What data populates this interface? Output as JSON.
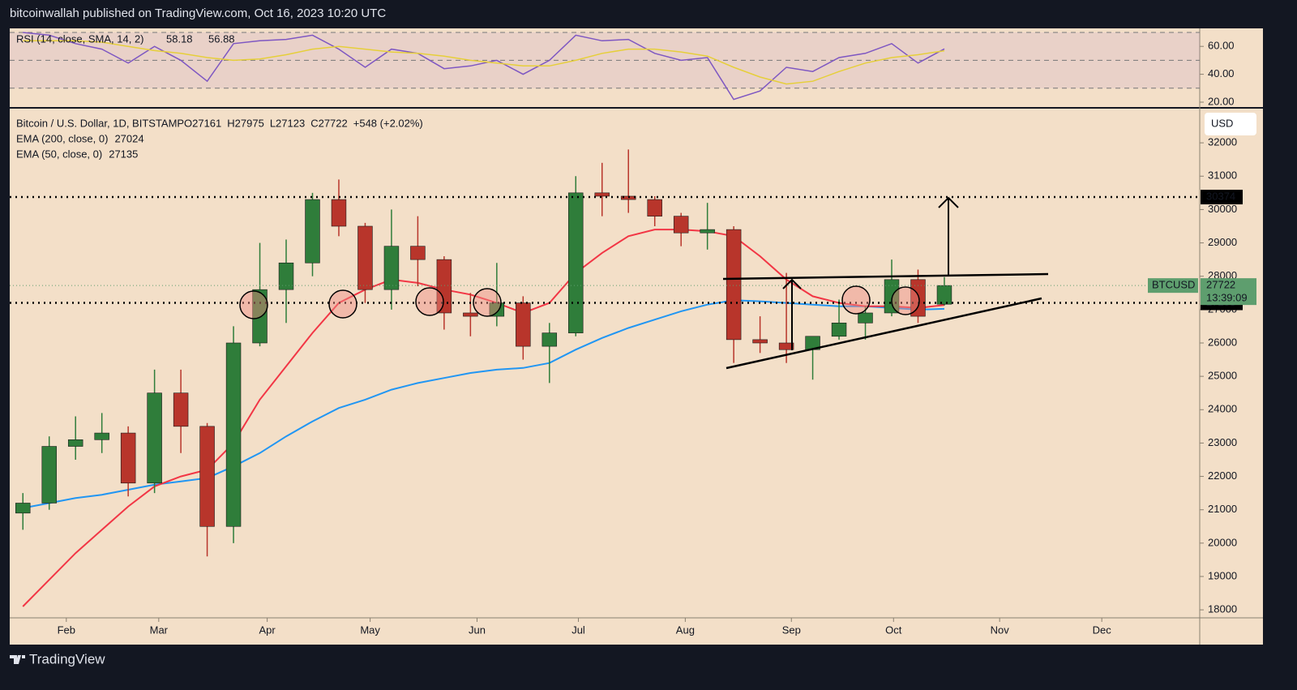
{
  "header": {
    "published": "bitcoinwallah published on TradingView.com, Oct 16, 2023 10:20 UTC"
  },
  "footer": {
    "brand": "TradingView"
  },
  "chart_data": [
    {
      "type": "line",
      "title": "RSI (14, close, SMA, 14, 2)",
      "series": [
        {
          "color": "#7e57c2",
          "legend_value": "58.18",
          "values": [
            70,
            68,
            62,
            58,
            48,
            60,
            50,
            35,
            62,
            64,
            65,
            68,
            58,
            45,
            58,
            55,
            44,
            46,
            50,
            40,
            50,
            68,
            64,
            65,
            55,
            50,
            52,
            22,
            28,
            45,
            42,
            52,
            55,
            62,
            48,
            58.18
          ]
        },
        {
          "color": "#e6cf3a",
          "legend_value": "56.88",
          "values": [
            64,
            64,
            64,
            63,
            60,
            57,
            55,
            52,
            50,
            51,
            54,
            58,
            60,
            58,
            56,
            55,
            53,
            50,
            48,
            46,
            46,
            50,
            55,
            58,
            58,
            56,
            53,
            45,
            38,
            33,
            35,
            42,
            48,
            52,
            54,
            56.88
          ]
        }
      ],
      "bands": [
        30,
        50,
        70
      ],
      "ylim": [
        17.1,
        72.9
      ],
      "yticks": [
        {
          "value": 20,
          "label": "20.00"
        },
        {
          "value": 40,
          "label": "40.00"
        },
        {
          "value": 60,
          "label": "60.00"
        }
      ],
      "xlim": [
        0,
        45.2
      ]
    },
    {
      "type": "candlestick",
      "title": "Bitcoin / U.S. Dollar, 1D, BITSTAMP",
      "legend_values": [
        "O27161",
        "H27975",
        "L27123",
        "C27722",
        "+548 (+2.02%)"
      ],
      "currency": "USD",
      "color_up": "#2f7d3a",
      "color_down": "#b8352b",
      "open": [
        20900,
        21200,
        22900,
        23100,
        23300,
        21800,
        24500,
        23500,
        20500,
        26000,
        27600,
        28400,
        30300,
        29500,
        27600,
        28900,
        28500,
        26900,
        26800,
        27200,
        25900,
        26300,
        30500,
        30400,
        30300,
        29800,
        29300,
        29400,
        26100,
        26000,
        25800,
        26200,
        26600,
        26900,
        27900,
        27161
      ],
      "high": [
        21500,
        23200,
        23800,
        23900,
        23500,
        25200,
        25200,
        23600,
        26500,
        29000,
        29100,
        30500,
        30900,
        29600,
        30000,
        29800,
        28600,
        27500,
        28400,
        27400,
        26600,
        31000,
        31400,
        31800,
        30400,
        29900,
        30200,
        29500,
        26800,
        28100,
        26200,
        27300,
        27100,
        28500,
        28200,
        27975
      ],
      "low": [
        20400,
        21000,
        22500,
        22700,
        21400,
        21500,
        22700,
        19600,
        20000,
        25900,
        26600,
        28000,
        29200,
        27200,
        27000,
        27700,
        26400,
        26200,
        26500,
        25500,
        24800,
        26200,
        29800,
        29900,
        29500,
        28900,
        28800,
        25400,
        25700,
        25400,
        24900,
        26100,
        26100,
        26800,
        26600,
        27123
      ],
      "close": [
        21200,
        22900,
        23100,
        23300,
        21800,
        24500,
        23500,
        20500,
        26000,
        27600,
        28400,
        30300,
        29500,
        27600,
        28900,
        28500,
        26900,
        26800,
        27200,
        25900,
        26300,
        30500,
        30400,
        30300,
        29800,
        29300,
        29400,
        26100,
        26000,
        25800,
        26200,
        26600,
        26900,
        27900,
        26800,
        27722
      ],
      "series": [
        {
          "name": "EMA (200, close, 0)",
          "color": "#2196f3",
          "legend_value": "27024",
          "values": [
            21050,
            21200,
            21350,
            21450,
            21600,
            21750,
            21850,
            21950,
            22300,
            22700,
            23200,
            23650,
            24050,
            24300,
            24600,
            24800,
            24950,
            25100,
            25200,
            25250,
            25400,
            25800,
            26150,
            26450,
            26700,
            26950,
            27150,
            27280,
            27250,
            27200,
            27150,
            27100,
            27100,
            27050,
            27000,
            27024
          ]
        },
        {
          "name": "EMA (50, close, 0)",
          "color": "#f23645",
          "legend_value": "27135",
          "values": [
            18100,
            18900,
            19700,
            20400,
            21100,
            21700,
            22000,
            22200,
            23000,
            24300,
            25300,
            26300,
            27200,
            27600,
            27900,
            27800,
            27600,
            27450,
            27200,
            26900,
            27200,
            28100,
            28700,
            29200,
            29400,
            29400,
            29350,
            29200,
            28600,
            27900,
            27400,
            27200,
            27100,
            27100,
            27050,
            27135
          ]
        }
      ],
      "levels": [
        30374,
        27203
      ],
      "last_price": {
        "symbol": "BTCUSD",
        "price": 27722,
        "countdown": "13:39:09"
      },
      "ylim": [
        17760,
        33000
      ],
      "yticks": [
        18000,
        19000,
        20000,
        21000,
        22000,
        23000,
        24000,
        25000,
        26000,
        27000,
        28000,
        29000,
        30000,
        31000,
        32000
      ],
      "xlim": [
        0,
        45.2
      ],
      "xticks": [
        {
          "value": 2.15,
          "label": "Feb"
        },
        {
          "value": 5.66,
          "label": "Mar"
        },
        {
          "value": 9.78,
          "label": "Apr"
        },
        {
          "value": 13.69,
          "label": "May"
        },
        {
          "value": 17.75,
          "label": "Jun"
        },
        {
          "value": 21.6,
          "label": "Jul"
        },
        {
          "value": 25.66,
          "label": "Aug"
        },
        {
          "value": 29.69,
          "label": "Sep"
        },
        {
          "value": 33.57,
          "label": "Oct"
        },
        {
          "value": 37.6,
          "label": "Nov"
        },
        {
          "value": 41.48,
          "label": "Dec"
        }
      ]
    }
  ]
}
